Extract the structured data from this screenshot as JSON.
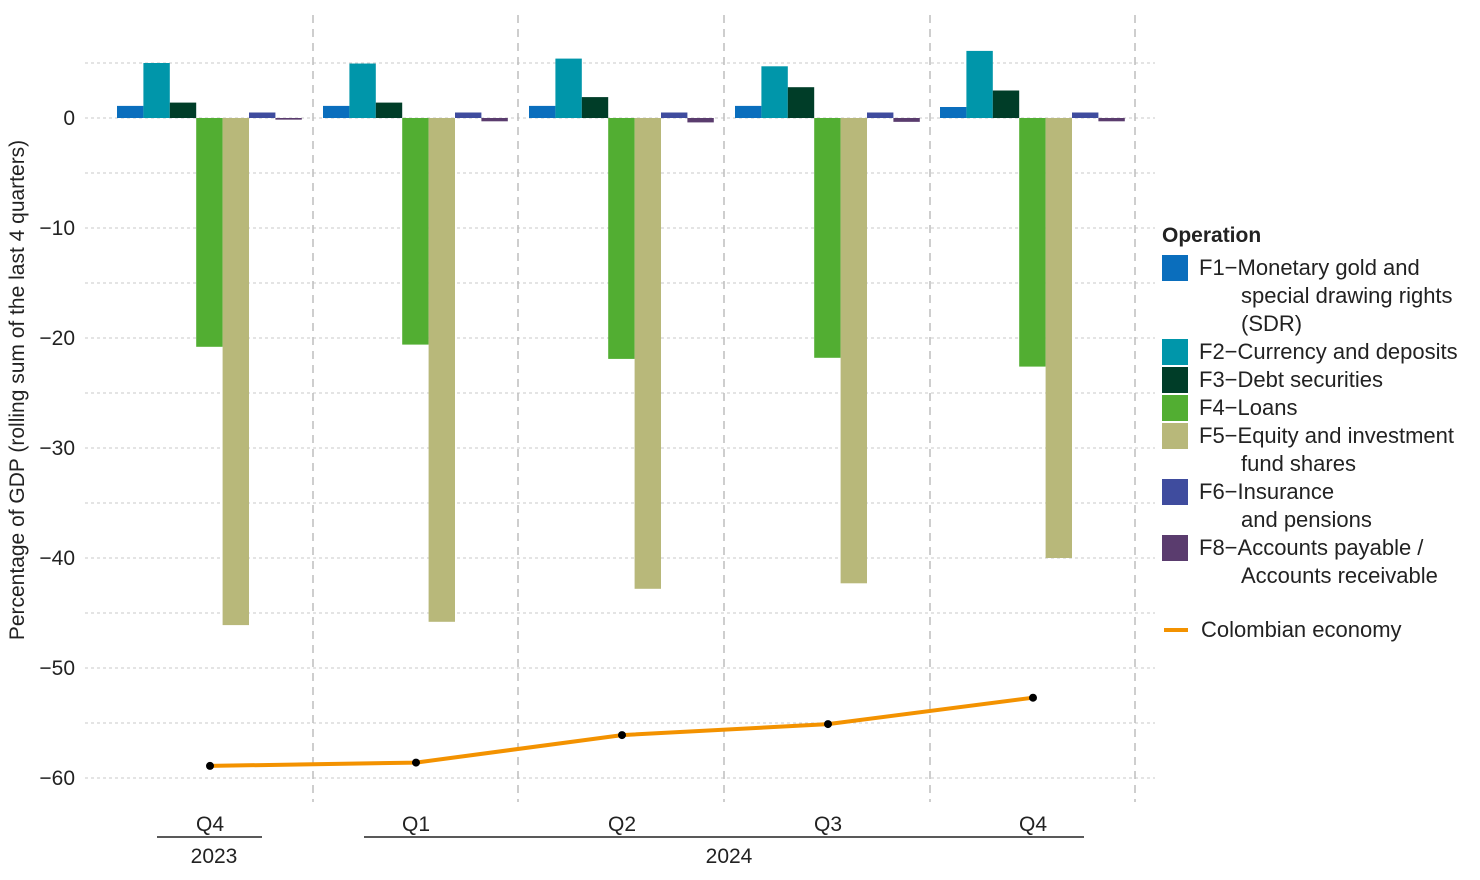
{
  "chart_data": {
    "type": "bar",
    "ylabel": "Percentage of GDP (rolling sum of the last 4 quarters)",
    "ylim": [
      -62,
      8.5
    ],
    "yticks": [
      0,
      -10,
      -20,
      -30,
      -40,
      -50,
      -60
    ],
    "yticklabels": [
      "0",
      "−10",
      "−20",
      "−30",
      "−40",
      "−50",
      "−60"
    ],
    "grid": true,
    "categories": [
      "Q4",
      "Q1",
      "Q2",
      "Q3",
      "Q4"
    ],
    "year_groups": [
      {
        "label": "2023",
        "categories": [
          0
        ]
      },
      {
        "label": "2024",
        "categories": [
          1,
          2,
          3,
          4
        ]
      }
    ],
    "legend_title": "Operation",
    "legend_position": "right",
    "series": [
      {
        "name": "F1−Monetary gold and special drawing rights (SDR)",
        "legend_lines": [
          "F1−Monetary gold and",
          "special drawing rights",
          "(SDR)"
        ],
        "color": "#0a6ebd",
        "values": [
          1.1,
          1.1,
          1.1,
          1.1,
          1.0
        ]
      },
      {
        "name": "F2−Currency and deposits",
        "legend_lines": [
          "F2−Currency and deposits"
        ],
        "color": "#0096aa",
        "values": [
          5.0,
          4.95,
          5.4,
          4.7,
          6.1
        ]
      },
      {
        "name": "F3−Debt securities",
        "legend_lines": [
          "F3−Debt securities"
        ],
        "color": "#003d28",
        "values": [
          1.4,
          1.4,
          1.9,
          2.8,
          2.5
        ]
      },
      {
        "name": "F4−Loans",
        "legend_lines": [
          "F4−Loans"
        ],
        "color": "#52ae32",
        "values": [
          -20.8,
          -20.6,
          -21.9,
          -21.8,
          -22.6
        ]
      },
      {
        "name": "F5−Equity and investment fund shares",
        "legend_lines": [
          "F5−Equity and investment",
          "fund shares"
        ],
        "color": "#b8b87a",
        "values": [
          -46.1,
          -45.8,
          -42.8,
          -42.3,
          -40.0
        ]
      },
      {
        "name": "F6−Insurance and pensions",
        "legend_lines": [
          "F6−Insurance",
          "and pensions"
        ],
        "color": "#3f4c9e",
        "values": [
          0.5,
          0.5,
          0.5,
          0.5,
          0.5
        ]
      },
      {
        "name": "F8−Accounts payable / Accounts receivable",
        "legend_lines": [
          "F8−Accounts payable /",
          "Accounts receivable"
        ],
        "color": "#5a3c6e",
        "values": [
          -0.15,
          -0.3,
          -0.4,
          -0.35,
          -0.3
        ]
      }
    ],
    "line_series": {
      "name": "Colombian economy",
      "color": "#f39200",
      "values": [
        -58.9,
        -58.6,
        -56.1,
        -55.1,
        -52.7
      ]
    }
  }
}
